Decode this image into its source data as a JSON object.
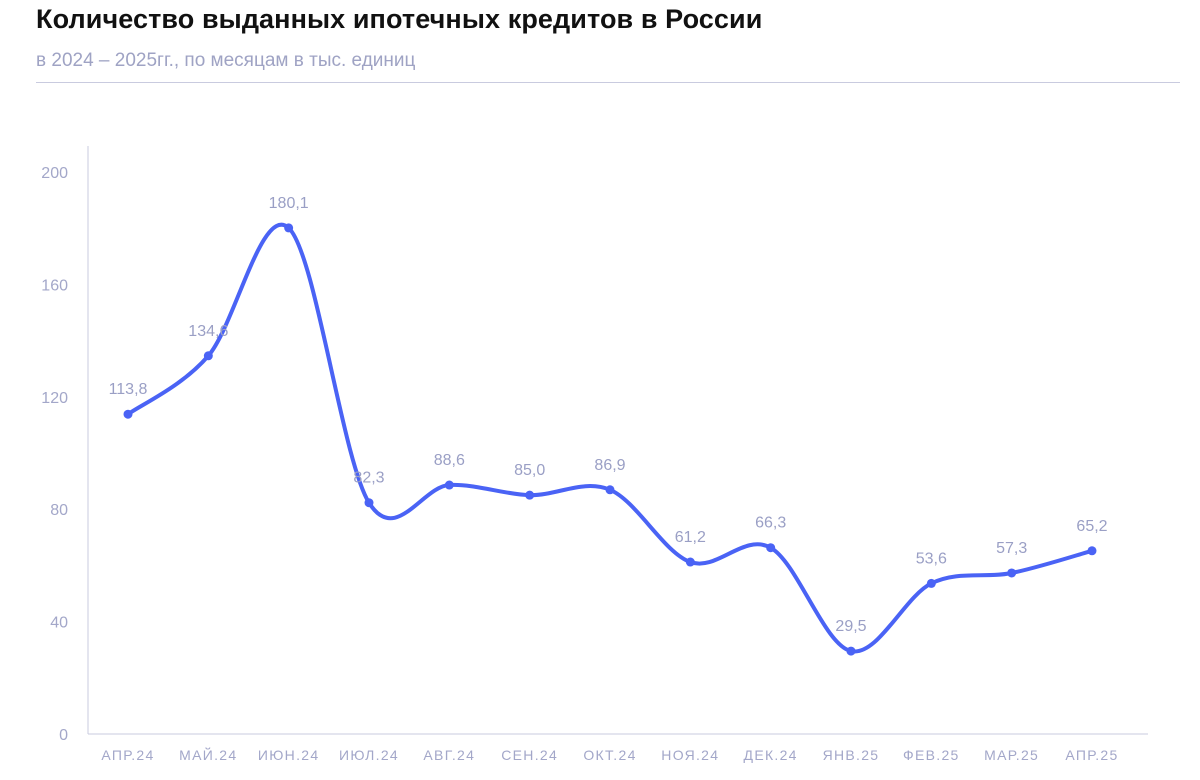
{
  "header": {
    "title": "Количество выданных ипотечных кредитов в России",
    "subtitle": "в 2024 – 2025гг., по месяцам в тыс. единиц"
  },
  "colors": {
    "line": "#4a63f5",
    "text_muted": "#a3a7c9",
    "axis": "#c9cbdf"
  },
  "chart_data": {
    "type": "line",
    "title": "Количество выданных ипотечных кредитов в России",
    "subtitle": "в 2024 – 2025гг., по месяцам в тыс. единиц",
    "xlabel": "",
    "ylabel": "",
    "categories": [
      "АПР.24",
      "МАЙ.24",
      "ИЮН.24",
      "ИЮЛ.24",
      "АВГ.24",
      "СЕН.24",
      "ОКТ.24",
      "НОЯ.24",
      "ДЕК.24",
      "ЯНВ.25",
      "ФЕВ.25",
      "МАР.25",
      "АПР.25"
    ],
    "series": [
      {
        "values": [
          113.8,
          134.6,
          180.1,
          82.3,
          88.6,
          85.0,
          86.9,
          61.2,
          66.3,
          29.5,
          53.6,
          57.3,
          65.2
        ],
        "data_labels": [
          "113,8",
          "134,6",
          "180,1",
          "82,3",
          "88,6",
          "85,0",
          "86,9",
          "61,2",
          "66,3",
          "29,5",
          "53,6",
          "57,3",
          "65,2"
        ]
      }
    ],
    "ylim": [
      0,
      200
    ],
    "yticks": [
      0,
      40,
      80,
      120,
      160,
      200
    ],
    "ytick_labels": [
      "0",
      "40",
      "80",
      "120",
      "160",
      "200"
    ],
    "grid": false,
    "legend": "none",
    "smooth": true,
    "markers": true
  }
}
